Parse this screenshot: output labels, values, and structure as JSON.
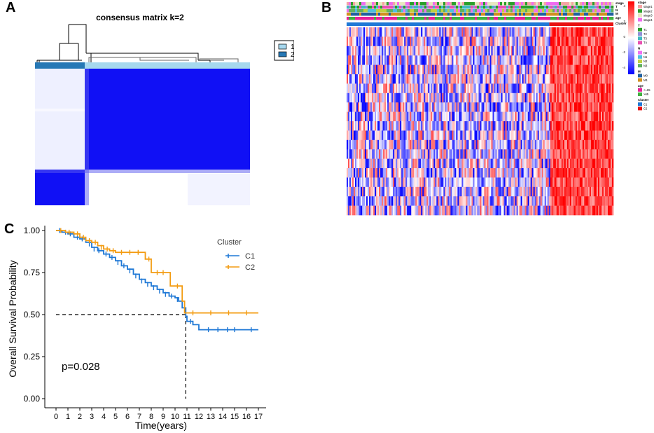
{
  "panels": {
    "a": "A",
    "b": "B",
    "c": "C"
  },
  "chart_data": [
    {
      "id": "A",
      "type": "heatmap",
      "title": "consensus matrix k=2",
      "legend": {
        "entries": [
          {
            "label": "1",
            "color": "#a6d8ee"
          },
          {
            "label": "2",
            "color": "#2678b5"
          }
        ],
        "placement": "right"
      },
      "cluster_bar": [
        {
          "cluster": "2",
          "fraction": 0.23
        },
        {
          "cluster": "1",
          "fraction": 0.77
        }
      ],
      "colors": {
        "high": "#1010f5",
        "low": "#ffffff",
        "grid": "#c8c8f5"
      }
    },
    {
      "id": "B",
      "type": "heatmap",
      "annotation_rows": [
        "stage",
        "T",
        "N",
        "M",
        "age",
        "Cluster"
      ],
      "legend_groups": [
        {
          "title": "stage",
          "entries": [
            {
              "label": "stage1",
              "color": "#f4a4a4"
            },
            {
              "label": "stage2",
              "color": "#2aa02a"
            },
            {
              "label": "stage3",
              "color": "#e8e8c0"
            },
            {
              "label": "stage4",
              "color": "#f06cf0"
            }
          ]
        },
        {
          "title": "T",
          "entries": [
            {
              "label": "T1",
              "color": "#2aa02a"
            },
            {
              "label": "T2",
              "color": "#9090d8"
            },
            {
              "label": "T3",
              "color": "#40b8c0"
            },
            {
              "label": "T4",
              "color": "#e850b0"
            }
          ]
        },
        {
          "title": "N",
          "entries": [
            {
              "label": "N0",
              "color": "#f070f0"
            },
            {
              "label": "N1",
              "color": "#50c0e0"
            },
            {
              "label": "N2",
              "color": "#c0d040"
            },
            {
              "label": "N3",
              "color": "#60b060"
            }
          ]
        },
        {
          "title": "M",
          "entries": [
            {
              "label": "M0",
              "color": "#2060a0"
            },
            {
              "label": "M1",
              "color": "#d09020"
            }
          ]
        },
        {
          "title": "age",
          "entries": [
            {
              "label": "<=65",
              "color": "#e8209a"
            },
            {
              "label": ">65",
              "color": "#40b040"
            }
          ]
        },
        {
          "title": "Cluster",
          "entries": [
            {
              "label": "C1",
              "color": "#1f78d6"
            },
            {
              "label": "C2",
              "color": "#e81010"
            }
          ]
        }
      ],
      "color_scale": {
        "ticks": [
          4,
          2,
          0,
          -2,
          -4
        ],
        "colors": [
          "#ff0000",
          "#ffffff",
          "#0000ff"
        ]
      },
      "cluster_split": [
        {
          "cluster": "C1",
          "fraction": 0.76
        },
        {
          "cluster": "C2",
          "fraction": 0.24
        }
      ]
    },
    {
      "id": "C",
      "type": "line",
      "subtype": "kaplan-meier",
      "xlabel": "Time(years)",
      "ylabel": "Overall Survival Probability",
      "xlim": [
        0,
        17
      ],
      "ylim": [
        0,
        1
      ],
      "xticks": [
        0,
        1,
        2,
        3,
        4,
        5,
        6,
        7,
        8,
        9,
        10,
        11,
        12,
        13,
        14,
        15,
        16,
        17
      ],
      "yticks": [
        "0.00",
        "0.25",
        "0.50",
        "0.75",
        "1.00"
      ],
      "pvalue_text": "p=0.028",
      "legend": {
        "title": "Cluster",
        "placement": "top-right"
      },
      "reference": {
        "median_y": 0.5,
        "median_x": 10.9
      },
      "series": [
        {
          "name": "C1",
          "color": "#1f78d6",
          "steps": [
            [
              0,
              1.0
            ],
            [
              0.5,
              0.99
            ],
            [
              1,
              0.98
            ],
            [
              1.5,
              0.96
            ],
            [
              2,
              0.95
            ],
            [
              2.5,
              0.93
            ],
            [
              3,
              0.9
            ],
            [
              3.5,
              0.88
            ],
            [
              4,
              0.86
            ],
            [
              4.5,
              0.84
            ],
            [
              5,
              0.82
            ],
            [
              5.5,
              0.79
            ],
            [
              6,
              0.77
            ],
            [
              6.5,
              0.74
            ],
            [
              7,
              0.71
            ],
            [
              7.5,
              0.69
            ],
            [
              8,
              0.67
            ],
            [
              8.5,
              0.65
            ],
            [
              9,
              0.63
            ],
            [
              9.5,
              0.61
            ],
            [
              10,
              0.6
            ],
            [
              10.3,
              0.58
            ],
            [
              10.6,
              0.54
            ],
            [
              10.9,
              0.49
            ],
            [
              11,
              0.46
            ],
            [
              11.5,
              0.44
            ],
            [
              12,
              0.41
            ],
            [
              17,
              0.41
            ]
          ],
          "censors": [
            [
              0.3,
              1.0
            ],
            [
              0.8,
              0.99
            ],
            [
              1.2,
              0.98
            ],
            [
              1.8,
              0.96
            ],
            [
              2.2,
              0.95
            ],
            [
              2.8,
              0.92
            ],
            [
              3.2,
              0.89
            ],
            [
              3.6,
              0.88
            ],
            [
              4.2,
              0.86
            ],
            [
              4.7,
              0.84
            ],
            [
              5.2,
              0.81
            ],
            [
              5.7,
              0.79
            ],
            [
              6.2,
              0.76
            ],
            [
              6.7,
              0.73
            ],
            [
              7.2,
              0.7
            ],
            [
              7.7,
              0.68
            ],
            [
              8.2,
              0.66
            ],
            [
              8.7,
              0.64
            ],
            [
              9.2,
              0.62
            ],
            [
              9.7,
              0.61
            ],
            [
              10.2,
              0.59
            ],
            [
              11.3,
              0.46
            ],
            [
              12.8,
              0.41
            ],
            [
              13.6,
              0.41
            ],
            [
              14.4,
              0.41
            ],
            [
              15.0,
              0.41
            ],
            [
              16.4,
              0.41
            ]
          ]
        },
        {
          "name": "C2",
          "color": "#f39c12",
          "steps": [
            [
              0,
              1.0
            ],
            [
              0.8,
              0.99
            ],
            [
              1.5,
              0.98
            ],
            [
              2,
              0.96
            ],
            [
              2.5,
              0.94
            ],
            [
              3,
              0.93
            ],
            [
              3.5,
              0.91
            ],
            [
              4,
              0.89
            ],
            [
              4.5,
              0.88
            ],
            [
              5,
              0.87
            ],
            [
              7.4,
              0.87
            ],
            [
              7.5,
              0.83
            ],
            [
              8,
              0.75
            ],
            [
              9.5,
              0.75
            ],
            [
              9.6,
              0.67
            ],
            [
              10.5,
              0.67
            ],
            [
              10.6,
              0.58
            ],
            [
              10.8,
              0.51
            ],
            [
              17,
              0.51
            ]
          ],
          "censors": [
            [
              0.4,
              1.0
            ],
            [
              1.1,
              0.99
            ],
            [
              1.8,
              0.98
            ],
            [
              2.3,
              0.96
            ],
            [
              2.8,
              0.94
            ],
            [
              3.3,
              0.93
            ],
            [
              3.8,
              0.9
            ],
            [
              4.3,
              0.89
            ],
            [
              4.8,
              0.88
            ],
            [
              5.5,
              0.87
            ],
            [
              6.2,
              0.87
            ],
            [
              6.9,
              0.87
            ],
            [
              7.8,
              0.83
            ],
            [
              8.5,
              0.75
            ],
            [
              9.0,
              0.75
            ],
            [
              10.2,
              0.67
            ],
            [
              11.5,
              0.51
            ],
            [
              13.0,
              0.51
            ],
            [
              14.5,
              0.51
            ],
            [
              16.0,
              0.51
            ]
          ]
        }
      ]
    }
  ]
}
